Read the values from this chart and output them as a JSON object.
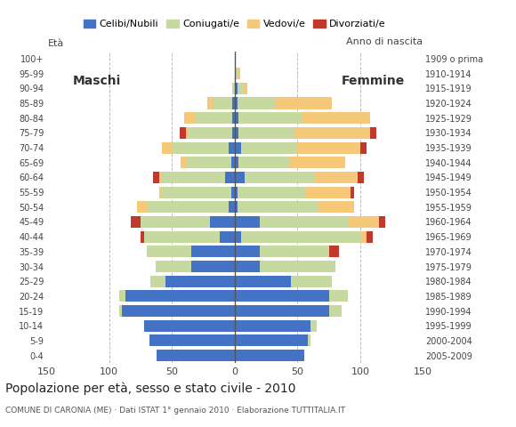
{
  "age_groups": [
    "0-4",
    "5-9",
    "10-14",
    "15-19",
    "20-24",
    "25-29",
    "30-34",
    "35-39",
    "40-44",
    "45-49",
    "50-54",
    "55-59",
    "60-64",
    "65-69",
    "70-74",
    "75-79",
    "80-84",
    "85-89",
    "90-94",
    "95-99",
    "100+"
  ],
  "birth_years": [
    "2005-2009",
    "2000-2004",
    "1995-1999",
    "1990-1994",
    "1985-1989",
    "1980-1984",
    "1975-1979",
    "1970-1974",
    "1965-1969",
    "1960-1964",
    "1955-1959",
    "1950-1954",
    "1945-1949",
    "1940-1944",
    "1935-1939",
    "1930-1934",
    "1925-1929",
    "1920-1924",
    "1915-1919",
    "1910-1914",
    "1909 o prima"
  ],
  "males": {
    "celibe": [
      62,
      68,
      72,
      90,
      87,
      55,
      35,
      35,
      12,
      20,
      5,
      3,
      8,
      3,
      5,
      2,
      2,
      2,
      0,
      0,
      0
    ],
    "coniugato": [
      0,
      0,
      0,
      2,
      5,
      12,
      28,
      35,
      60,
      55,
      65,
      55,
      50,
      35,
      45,
      35,
      30,
      15,
      2,
      0,
      0
    ],
    "vedovo": [
      0,
      0,
      0,
      0,
      0,
      0,
      0,
      0,
      0,
      0,
      8,
      2,
      2,
      5,
      8,
      2,
      8,
      5,
      0,
      0,
      0
    ],
    "divorziato": [
      0,
      0,
      0,
      0,
      0,
      0,
      0,
      0,
      3,
      8,
      0,
      0,
      5,
      0,
      0,
      5,
      0,
      0,
      0,
      0,
      0
    ]
  },
  "females": {
    "nubile": [
      55,
      58,
      60,
      75,
      75,
      45,
      20,
      20,
      5,
      20,
      2,
      2,
      8,
      3,
      5,
      3,
      3,
      2,
      2,
      0,
      0
    ],
    "coniugata": [
      0,
      2,
      5,
      10,
      15,
      32,
      60,
      55,
      95,
      70,
      65,
      55,
      55,
      40,
      45,
      45,
      50,
      30,
      5,
      2,
      0
    ],
    "vedova": [
      0,
      0,
      0,
      0,
      0,
      0,
      0,
      0,
      5,
      25,
      28,
      35,
      35,
      45,
      50,
      60,
      55,
      45,
      3,
      2,
      0
    ],
    "divorziata": [
      0,
      0,
      0,
      0,
      0,
      0,
      0,
      8,
      5,
      5,
      0,
      3,
      5,
      0,
      5,
      5,
      0,
      0,
      0,
      0,
      0
    ]
  },
  "colors": {
    "celibe": "#4472c4",
    "coniugato": "#c5d9a0",
    "vedovo": "#f5c87a",
    "divorziato": "#c0392b"
  },
  "xlim": 150,
  "title": "Popolazione per età, sesso e stato civile - 2010",
  "subtitle": "COMUNE DI CARONIA (ME) · Dati ISTAT 1° gennaio 2010 · Elaborazione TUTTITALIA.IT",
  "legend_labels": [
    "Celibi/Nubili",
    "Coniugati/e",
    "Vedovi/e",
    "Divorziati/e"
  ],
  "background_color": "#ffffff",
  "grid_color": "#bbbbbb"
}
